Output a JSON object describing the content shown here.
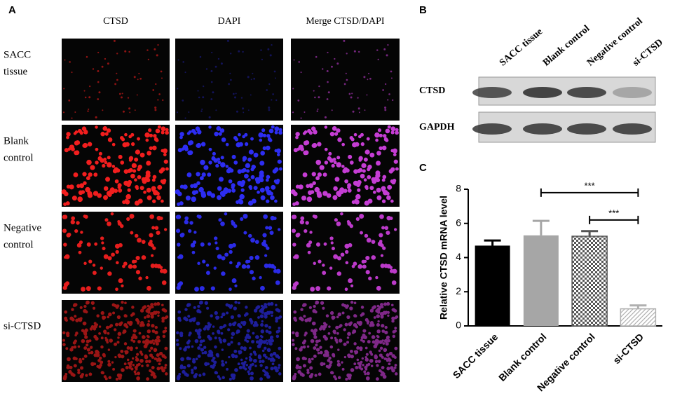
{
  "panel_a": {
    "label": "A",
    "columns": [
      "CTSD",
      "DAPI",
      "Merge CTSD/DAPI"
    ],
    "rows": [
      [
        "SACC",
        "tissue"
      ],
      [
        "Blank",
        "control"
      ],
      [
        "Negative",
        "control"
      ],
      [
        "si-CTSD"
      ]
    ]
  },
  "panel_b": {
    "label": "B",
    "lanes": [
      "SACC tissue",
      "Blank control",
      "Negative control",
      "si-CTSD"
    ],
    "blots": [
      "CTSD",
      "GAPDH"
    ]
  },
  "panel_c_label": "C",
  "chart_data": {
    "type": "bar",
    "y_label": "Relative CTSD mRNA level",
    "categories": [
      "SACC tissue",
      "Blank control",
      "Negative control",
      "si-CTSD"
    ],
    "values": [
      4.7,
      5.3,
      5.25,
      1.0
    ],
    "errors": [
      0.3,
      0.85,
      0.3,
      0.2
    ],
    "colors": [
      "#000000",
      "#a6a6a6",
      "#555555",
      "#b0b0b0"
    ],
    "patterns": [
      "solid",
      "solid",
      "checker",
      "hatch"
    ],
    "ylim": [
      0,
      8
    ],
    "yticks": [
      0,
      2,
      4,
      6,
      8
    ],
    "annotations": [
      {
        "text": "***",
        "between": [
          "Blank control",
          "si-CTSD"
        ],
        "y": 7.8
      },
      {
        "text": "***",
        "between": [
          "Negative control",
          "si-CTSD"
        ],
        "y": 6.2
      }
    ]
  }
}
